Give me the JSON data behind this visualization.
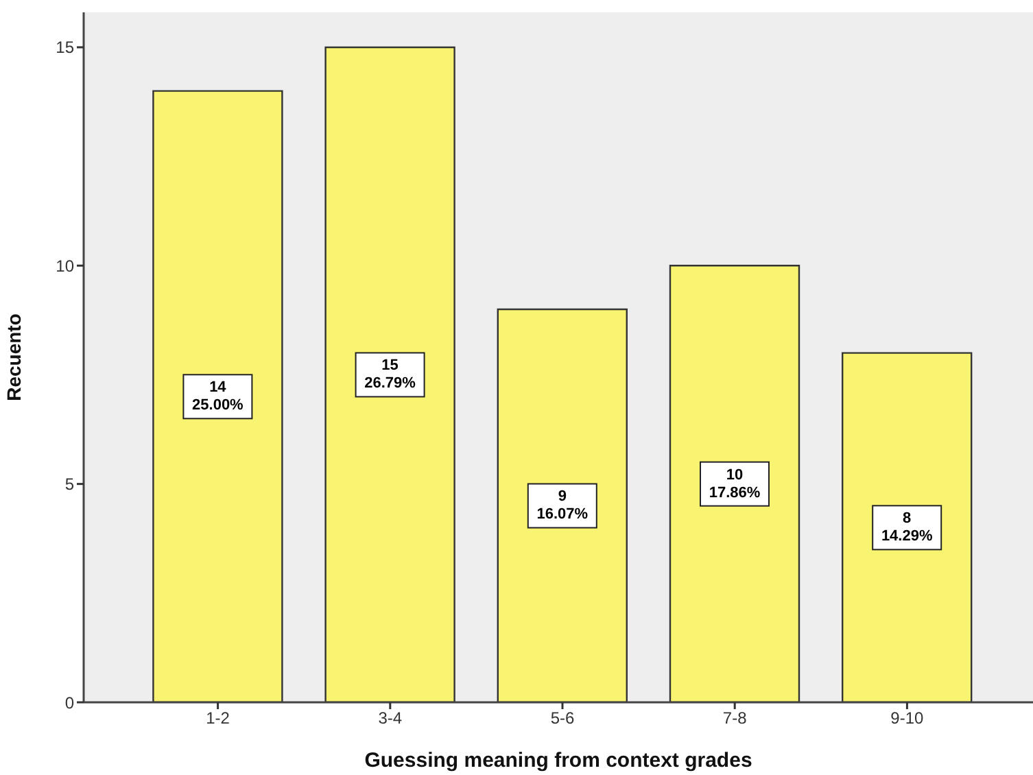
{
  "chart_data": {
    "type": "bar",
    "xlabel": "Guessing meaning from context grades",
    "ylabel": "Recuento",
    "categories": [
      "1-2",
      "3-4",
      "5-6",
      "7-8",
      "9-10"
    ],
    "values": [
      14,
      15,
      9,
      10,
      8
    ],
    "value_labels": [
      "14\n25.00%",
      "15\n26.79%",
      "9\n16.07%",
      "10\n17.86%",
      "8\n14.29%"
    ],
    "color": "#f8f472",
    "ylim": [
      0,
      15.8
    ],
    "yticks": [
      0,
      5,
      10,
      15
    ]
  }
}
